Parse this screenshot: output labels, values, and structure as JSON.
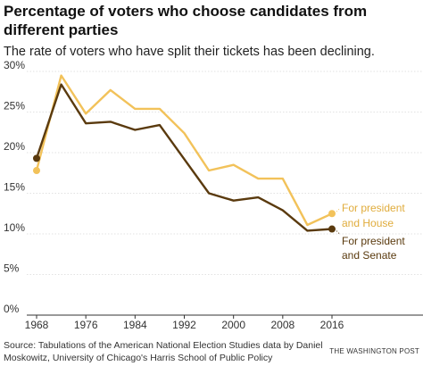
{
  "header": {
    "title": "Percentage of voters who choose candidates from different parties",
    "subtitle": "The rate of voters who have split their tickets has been declining."
  },
  "footer": {
    "source": "Source: Tabulations of the American National Election Studies data by Daniel Moskowitz, University of Chicago's Harris School of Public Policy",
    "credit": "THE WASHINGTON POST"
  },
  "chart_data": {
    "type": "line",
    "title": "Percentage of voters who choose candidates from different parties",
    "subtitle": "The rate of voters who have split their tickets has been declining.",
    "xlabel": "",
    "ylabel": "",
    "x": [
      1968,
      1972,
      1976,
      1980,
      1984,
      1988,
      1992,
      1996,
      2000,
      2004,
      2008,
      2012,
      2016
    ],
    "xlim": [
      1968,
      2016
    ],
    "ylim": [
      0,
      30
    ],
    "x_ticks": [
      1968,
      1976,
      1984,
      1992,
      2000,
      2008,
      2016
    ],
    "x_tick_labels": [
      "1968",
      "1976",
      "1984",
      "1992",
      "2000",
      "2008",
      "2016"
    ],
    "y_ticks": [
      0,
      5,
      10,
      15,
      20,
      25,
      30
    ],
    "y_tick_labels": [
      "0%",
      "5%",
      "10%",
      "15%",
      "20%",
      "25%",
      "30%"
    ],
    "grid": "horizontal",
    "legend": "direct labels at right end of lines",
    "series": [
      {
        "name": "For president and House",
        "label_lines": [
          "For president",
          "and House"
        ],
        "color": "#f2c25a",
        "values": [
          17.8,
          29.5,
          24.8,
          27.7,
          25.4,
          25.4,
          22.4,
          17.8,
          18.5,
          16.8,
          16.8,
          11.1,
          12.5
        ]
      },
      {
        "name": "For president and Senate",
        "label_lines": [
          "For president",
          "and Senate"
        ],
        "color": "#5a3a0e",
        "values": [
          19.3,
          28.4,
          23.6,
          23.8,
          22.8,
          23.4,
          19.2,
          15.0,
          14.1,
          14.5,
          12.9,
          10.4,
          10.6
        ]
      }
    ]
  }
}
